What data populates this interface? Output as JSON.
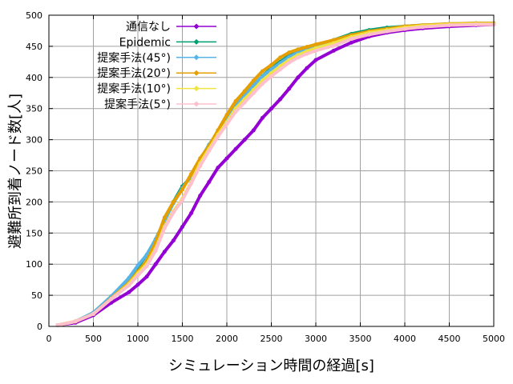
{
  "chart_data": {
    "type": "line",
    "title": "",
    "xlabel": "シミュレーション時間の経過[s]",
    "ylabel": "避難所到着ノード数[人]",
    "xlim": [
      0,
      5000
    ],
    "ylim": [
      0,
      500
    ],
    "xticks": [
      0,
      500,
      1000,
      1500,
      2000,
      2500,
      3000,
      3500,
      4000,
      4500,
      5000
    ],
    "yticks": [
      0,
      50,
      100,
      150,
      200,
      250,
      300,
      350,
      400,
      450,
      500
    ],
    "grid": true,
    "legend_position": "top-right",
    "x": [
      100,
      300,
      500,
      700,
      900,
      1000,
      1100,
      1200,
      1300,
      1400,
      1500,
      1600,
      1700,
      1800,
      1900,
      2000,
      2100,
      2200,
      2300,
      2400,
      2500,
      2600,
      2700,
      2800,
      2900,
      3000,
      3200,
      3400,
      3600,
      3800,
      4000,
      4200,
      4500,
      4800,
      5000
    ],
    "series": [
      {
        "name": "通信なし",
        "color": "#9400d3",
        "values": [
          2,
          6,
          18,
          38,
          55,
          67,
          80,
          100,
          120,
          138,
          160,
          182,
          210,
          232,
          255,
          270,
          285,
          300,
          315,
          335,
          350,
          365,
          382,
          400,
          415,
          428,
          443,
          456,
          466,
          472,
          476,
          479,
          482,
          484,
          485
        ]
      },
      {
        "name": "Epidemic",
        "color": "#009e73",
        "values": [
          2,
          8,
          22,
          48,
          75,
          95,
          115,
          140,
          170,
          200,
          225,
          240,
          265,
          290,
          310,
          335,
          355,
          370,
          385,
          402,
          415,
          425,
          435,
          443,
          447,
          452,
          460,
          470,
          476,
          480,
          482,
          484,
          485,
          486,
          486
        ]
      },
      {
        "name": "提案手法(45°)",
        "color": "#56b4e9",
        "values": [
          2,
          8,
          22,
          48,
          78,
          98,
          115,
          140,
          170,
          198,
          222,
          242,
          268,
          292,
          312,
          335,
          355,
          372,
          388,
          402,
          413,
          423,
          433,
          440,
          445,
          450,
          458,
          468,
          474,
          478,
          482,
          484,
          486,
          487,
          487
        ]
      },
      {
        "name": "提案手法(20°)",
        "color": "#e69f00",
        "values": [
          2,
          8,
          20,
          45,
          70,
          88,
          105,
          135,
          175,
          200,
          220,
          245,
          270,
          290,
          315,
          340,
          362,
          378,
          395,
          410,
          420,
          432,
          440,
          445,
          449,
          453,
          460,
          468,
          474,
          478,
          482,
          484,
          486,
          487,
          487
        ]
      },
      {
        "name": "提案手法(10°)",
        "color": "#f0e442",
        "values": [
          2,
          8,
          20,
          44,
          68,
          85,
          100,
          125,
          160,
          185,
          205,
          232,
          262,
          285,
          308,
          328,
          350,
          365,
          380,
          395,
          407,
          418,
          428,
          436,
          442,
          447,
          455,
          465,
          472,
          476,
          480,
          483,
          485,
          486,
          486
        ]
      },
      {
        "name": "提案手法(5°)",
        "color": "#ffc0cb",
        "values": [
          2,
          8,
          20,
          44,
          66,
          82,
          97,
          122,
          158,
          183,
          203,
          230,
          258,
          282,
          305,
          325,
          345,
          360,
          375,
          390,
          402,
          413,
          424,
          432,
          438,
          443,
          451,
          462,
          469,
          474,
          478,
          481,
          484,
          485,
          485
        ]
      }
    ]
  }
}
